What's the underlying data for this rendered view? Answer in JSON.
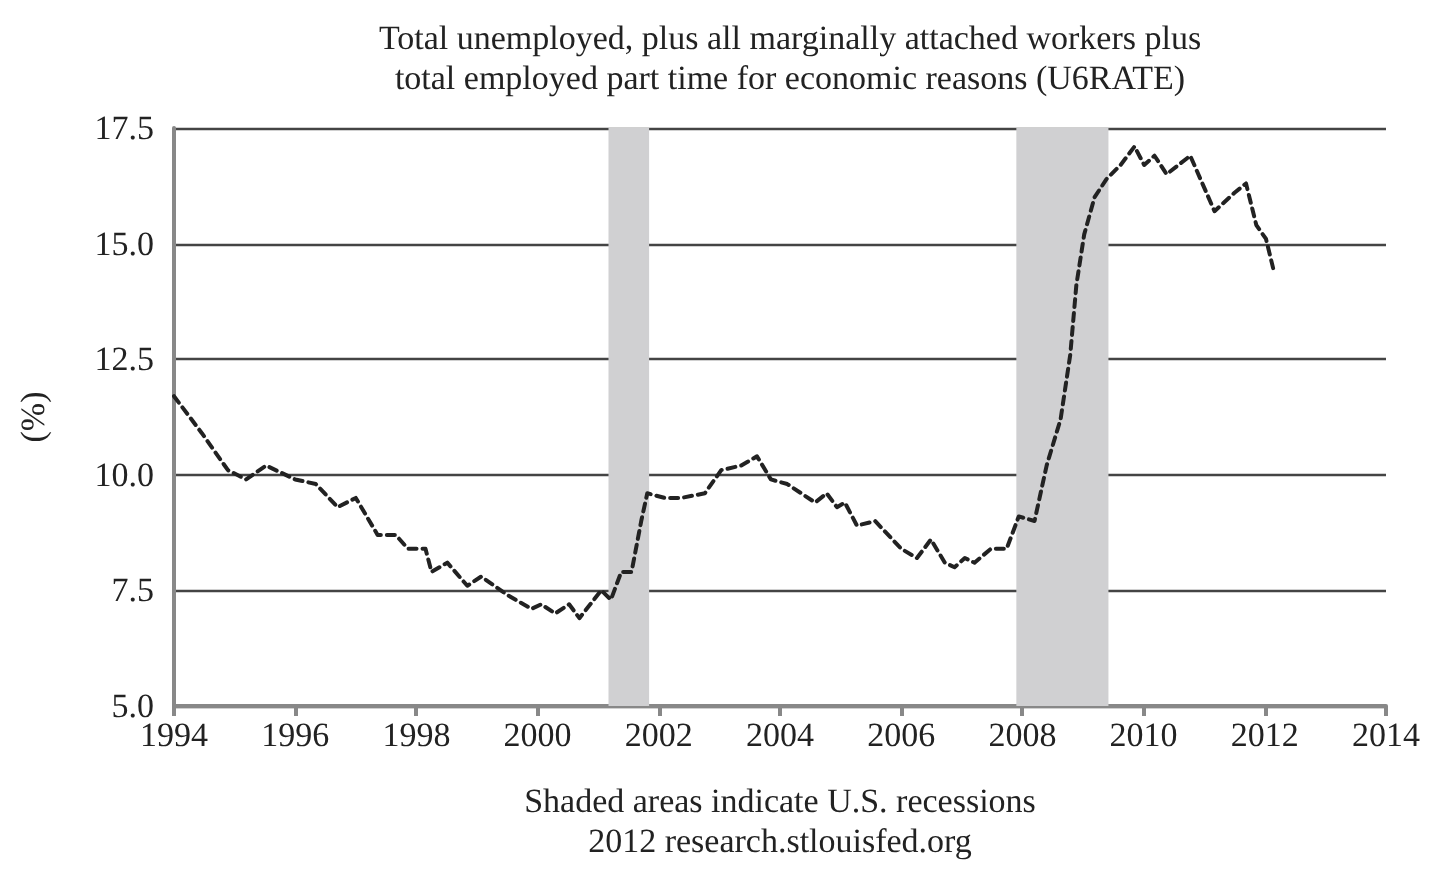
{
  "chart_data": {
    "type": "line",
    "title": "Total unemployed, plus all marginally attached workers plus\ntotal employed part time for economic reasons (U6RATE)",
    "ylabel": "(%)",
    "annotations": [
      "Shaded areas indicate U.S. recessions",
      "2012 research.stlouisfed.org"
    ],
    "xlim": [
      1994,
      2014
    ],
    "xticks": [
      1994,
      1996,
      1998,
      2000,
      2002,
      2004,
      2006,
      2008,
      2010,
      2012,
      2014
    ],
    "ylim": [
      5,
      17.5
    ],
    "yticks": [
      {
        "value": 5,
        "label": "5.0"
      },
      7.5,
      {
        "value": 10,
        "label": "10.0"
      },
      12.5,
      {
        "value": 15,
        "label": "15.0"
      },
      17.5
    ],
    "grid": "y",
    "marker": "none",
    "line_style": "dashed",
    "bands": [
      {
        "axis": "x",
        "from": 2001.17,
        "to": 2001.84,
        "label": null,
        "color": "#d0d0d2"
      },
      {
        "axis": "x",
        "from": 2007.9,
        "to": 2009.42,
        "label": null,
        "color": "#d0d0d2"
      }
    ],
    "series": [
      {
        "color": "#222222",
        "x": [
          1994.0,
          1994.46,
          1994.89,
          1995.19,
          1995.52,
          1996.0,
          1996.34,
          1996.7,
          1997.0,
          1997.36,
          1997.66,
          1997.86,
          1998.15,
          1998.25,
          1998.51,
          1998.84,
          1999.07,
          1999.5,
          1999.9,
          2000.06,
          2000.29,
          2000.52,
          2000.69,
          2001.05,
          2001.21,
          2001.38,
          2001.55,
          2001.71,
          2001.81,
          2002.1,
          2002.37,
          2002.76,
          2003.03,
          2003.36,
          2003.62,
          2003.85,
          2004.12,
          2004.58,
          2004.77,
          2004.94,
          2005.07,
          2005.27,
          2005.57,
          2006.0,
          2006.26,
          2006.49,
          2006.72,
          2006.88,
          2007.05,
          2007.21,
          2007.48,
          2007.74,
          2007.94,
          2008.2,
          2008.4,
          2008.63,
          2008.79,
          2008.89,
          2009.02,
          2009.19,
          2009.39,
          2009.62,
          2009.85,
          2010.01,
          2010.18,
          2010.38,
          2010.77,
          2011.17,
          2011.5,
          2011.69,
          2011.86,
          2012.02,
          2012.15
        ],
        "values": [
          11.7,
          10.9,
          10.1,
          9.9,
          10.2,
          9.9,
          9.8,
          9.3,
          9.5,
          8.7,
          8.7,
          8.4,
          8.4,
          7.9,
          8.1,
          7.6,
          7.8,
          7.4,
          7.1,
          7.2,
          7.0,
          7.2,
          6.9,
          7.5,
          7.3,
          7.9,
          7.9,
          9.0,
          9.6,
          9.5,
          9.5,
          9.6,
          10.1,
          10.2,
          10.4,
          9.9,
          9.8,
          9.4,
          9.6,
          9.3,
          9.4,
          8.9,
          9.0,
          8.4,
          8.2,
          8.6,
          8.1,
          8.0,
          8.2,
          8.1,
          8.4,
          8.4,
          9.1,
          9.0,
          10.2,
          11.2,
          12.6,
          14.1,
          15.2,
          16.0,
          16.4,
          16.7,
          17.1,
          16.7,
          16.9,
          16.5,
          16.9,
          15.7,
          16.1,
          16.3,
          15.4,
          15.1,
          14.4
        ]
      }
    ]
  }
}
